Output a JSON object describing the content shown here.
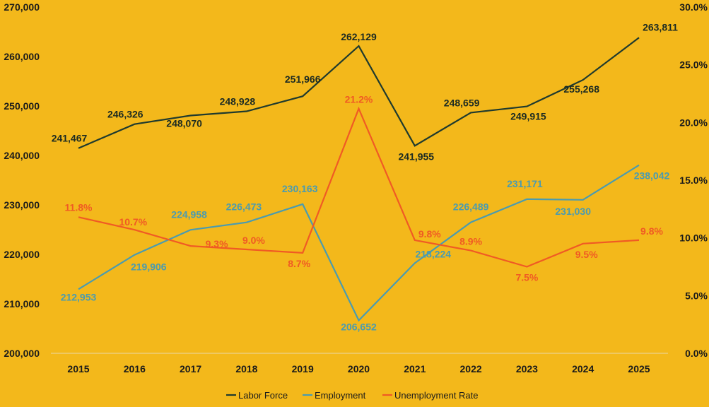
{
  "chart_data": {
    "type": "line",
    "title": "",
    "x": [
      "2015",
      "2016",
      "2017",
      "2018",
      "2019",
      "2020",
      "2021",
      "2022",
      "2023",
      "2024",
      "2025"
    ],
    "y_left": {
      "min": 200000,
      "max": 270000,
      "step": 10000,
      "ticks": [
        "200,000",
        "210,000",
        "220,000",
        "230,000",
        "240,000",
        "250,000",
        "260,000",
        "270,000"
      ]
    },
    "y_right": {
      "min": 0,
      "max": 30,
      "step": 5,
      "ticks": [
        "0.0%",
        "5.0%",
        "10.0%",
        "15.0%",
        "20.0%",
        "25.0%",
        "30.0%"
      ]
    },
    "series": [
      {
        "name": "Labor Force",
        "axis": "left",
        "color": "#1F3A2E",
        "values": [
          241467,
          246326,
          248070,
          248928,
          251966,
          262129,
          241955,
          248659,
          249915,
          255268,
          263811
        ],
        "labels": [
          "241,467",
          "246,326",
          "248,070",
          "248,928",
          "251,966",
          "262,129",
          "241,955",
          "248,659",
          "249,915",
          "255,268",
          "263,811"
        ]
      },
      {
        "name": "Employment",
        "axis": "left",
        "color": "#4A9BB0",
        "values": [
          212953,
          219906,
          224958,
          226473,
          230163,
          206652,
          218224,
          226489,
          231171,
          231030,
          238042
        ],
        "labels": [
          "212,953",
          "219,906",
          "224,958",
          "226,473",
          "230,163",
          "206,652",
          "218,224",
          "226,489",
          "231,171",
          "231,030",
          "238,042"
        ]
      },
      {
        "name": "Unemployment Rate",
        "axis": "right",
        "color": "#F05A24",
        "values": [
          11.8,
          10.7,
          9.3,
          9.0,
          8.7,
          21.2,
          9.8,
          8.9,
          7.5,
          9.5,
          9.8
        ],
        "labels": [
          "11.8%",
          "10.7%",
          "9.3%",
          "9.0%",
          "8.7%",
          "21.2%",
          "9.8%",
          "8.9%",
          "7.5%",
          "9.5%",
          "9.8%"
        ]
      }
    ],
    "legend": {
      "position": "bottom"
    },
    "grid": false
  }
}
